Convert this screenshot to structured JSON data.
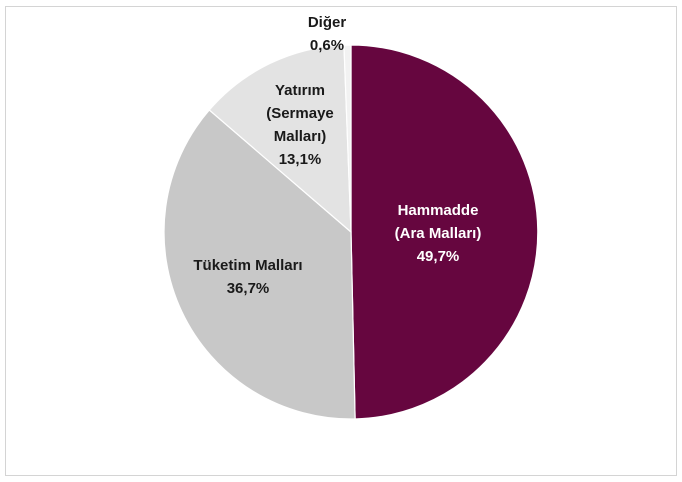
{
  "chart_data": {
    "type": "pie",
    "title": "",
    "slices": [
      {
        "label": [
          "Hammadde",
          "(Ara Malları)"
        ],
        "percent_label": "49,7%",
        "value": 49.7,
        "color": "#66063f",
        "label_color": "#ffffff"
      },
      {
        "label": [
          "Tüketim Malları"
        ],
        "percent_label": "36,7%",
        "value": 36.7,
        "color": "#c8c8c8",
        "label_color": "#1a1a1a"
      },
      {
        "label": [
          "Yatırım",
          "(Sermaye",
          "Malları)"
        ],
        "percent_label": "13,1%",
        "value": 13.1,
        "color": "#e3e3e3",
        "label_color": "#1a1a1a"
      },
      {
        "label": [
          "Diğer"
        ],
        "percent_label": "0,6%",
        "value": 0.6,
        "color": "#f2f2f2",
        "label_color": "#1a1a1a"
      }
    ],
    "start": "12 o'clock",
    "direction": "clockwise",
    "legend": "none"
  }
}
